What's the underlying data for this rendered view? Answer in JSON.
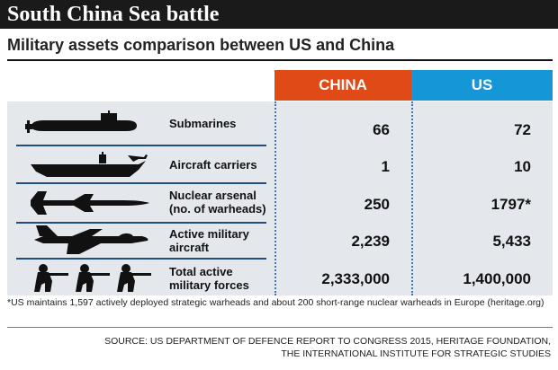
{
  "title": "South China Sea battle",
  "subtitle": "Military assets comparison between US and China",
  "columns": {
    "china": "CHINA",
    "us": "US"
  },
  "colors": {
    "china": "#e04a17",
    "us": "#1596d6",
    "header_bg": "#1a1a1a",
    "table_bg": "#e4e8ec"
  },
  "rows": [
    {
      "icon": "submarine-icon",
      "label_lines": [
        "Submarines",
        ""
      ],
      "china": "66",
      "us": "72"
    },
    {
      "icon": "aircraft-carrier-icon",
      "label_lines": [
        "Aircraft carriers",
        ""
      ],
      "china": "1",
      "us": "10"
    },
    {
      "icon": "missile-icon",
      "label_lines": [
        "Nuclear arsenal",
        "(no. of warheads)"
      ],
      "china": "250",
      "us": "1797*"
    },
    {
      "icon": "fighter-jet-icon",
      "label_lines": [
        "Active military",
        "aircraft"
      ],
      "china": "2,239",
      "us": "5,433"
    },
    {
      "icon": "soldiers-icon",
      "label_lines": [
        "Total active",
        "military forces"
      ],
      "china": "2,333,000",
      "us": "1,400,000"
    }
  ],
  "footnote": "*US maintains 1,597 actively deployed strategic warheads and about 200 short-range nuclear warheads in Europe (heritage.org)",
  "source_lines": [
    "SOURCE: US DEPARTMENT OF DEFENCE REPORT TO CONGRESS 2015,  HERITAGE FOUNDATION,",
    "THE INTERNATIONAL INSTITUTE FOR STRATEGIC STUDIES"
  ]
}
